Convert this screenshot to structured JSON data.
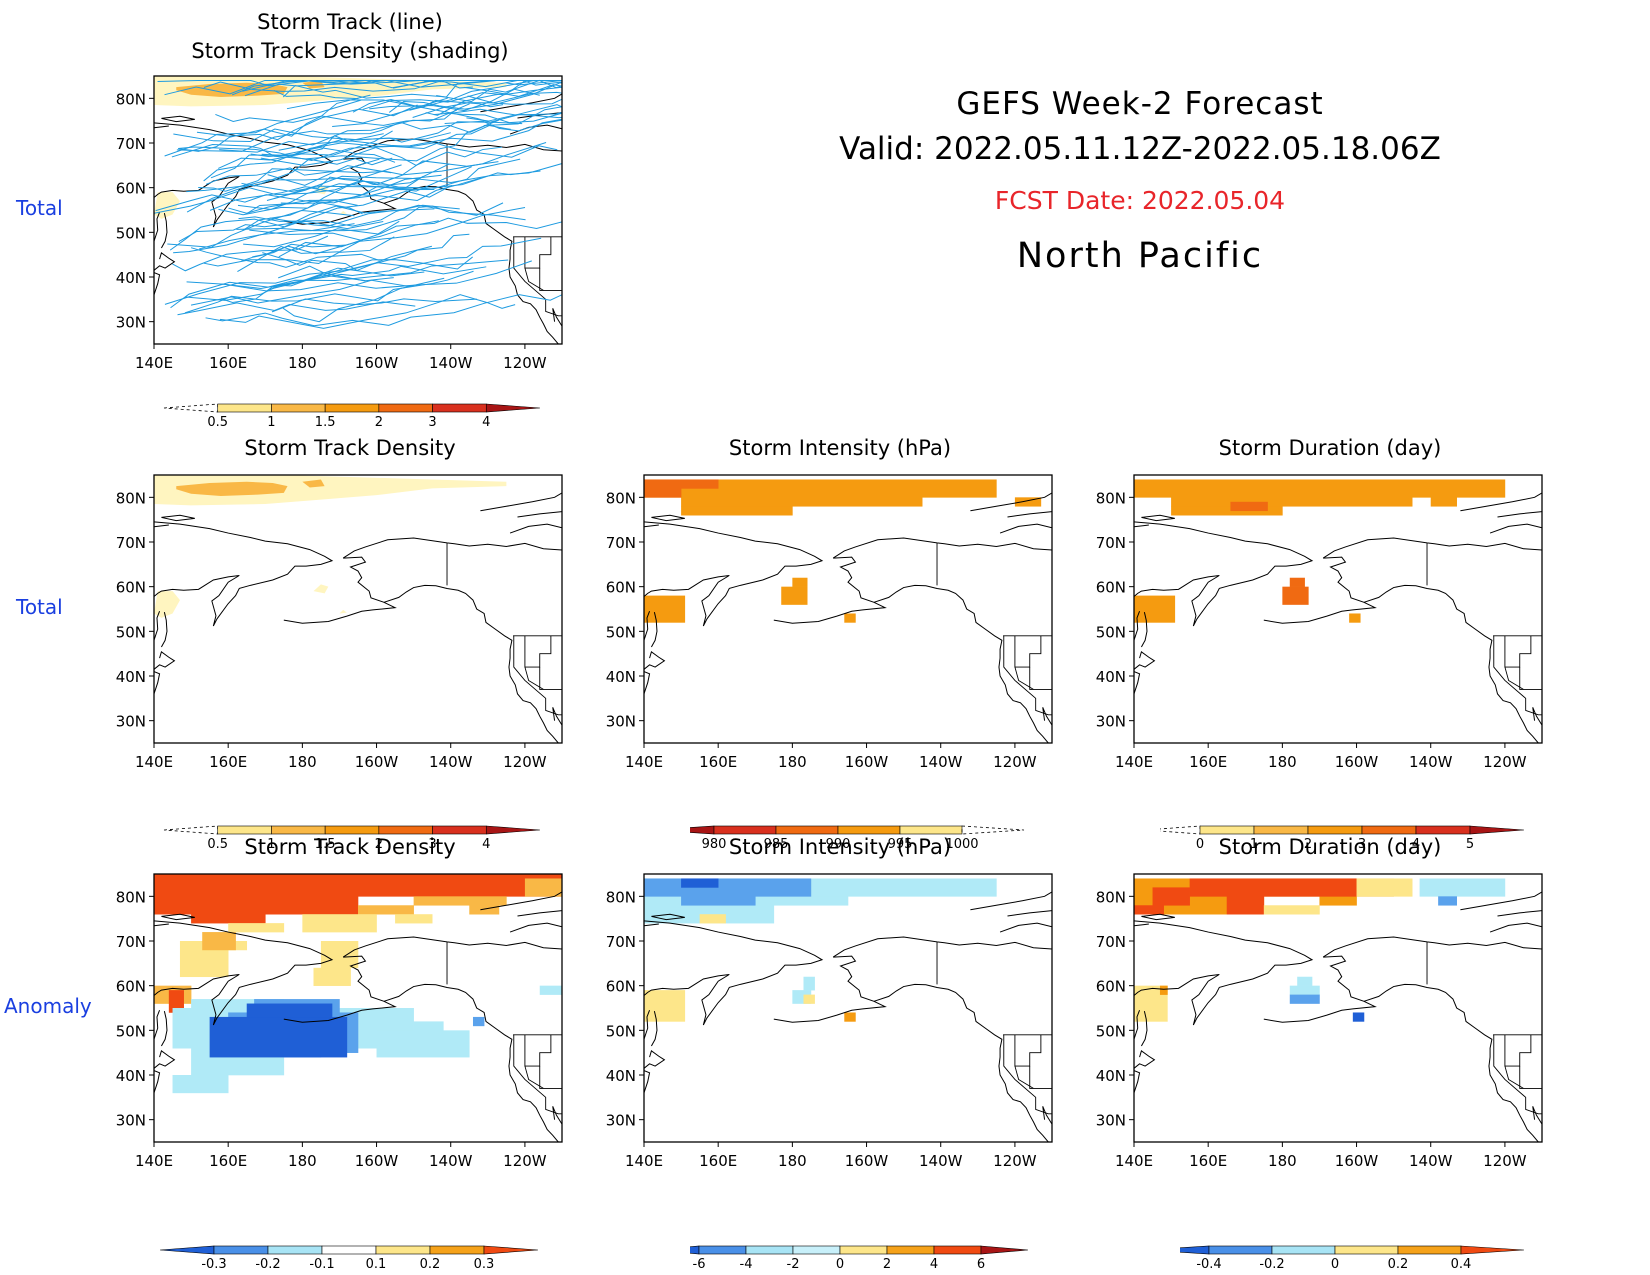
{
  "header": {
    "title": "GEFS Week-2 Forecast",
    "valid": "Valid: 2022.05.11.12Z-2022.05.18.06Z",
    "fcst_date": "FCST Date: 2022.05.04",
    "region": "North Pacific"
  },
  "row_labels": {
    "top": "Total",
    "middle": "Total",
    "bottom": "Anomaly"
  },
  "panels": {
    "track": {
      "title_line1": "Storm Track (line)",
      "title_line2": "Storm Track Density (shading)"
    },
    "total_density": {
      "title": "Storm Track Density"
    },
    "total_intensity": {
      "title": "Storm Intensity (hPa)"
    },
    "total_duration": {
      "title": "Storm Duration (day)"
    },
    "anom_density": {
      "title": "Storm Track Density"
    },
    "anom_intensity": {
      "title": "Storm Intensity (hPa)"
    },
    "anom_duration": {
      "title": "Storm Duration (day)"
    }
  },
  "axes": {
    "lat_labels": [
      "80N",
      "70N",
      "60N",
      "50N",
      "40N",
      "30N"
    ],
    "lon_labels": [
      "140E",
      "160E",
      "180",
      "160W",
      "140W",
      "120W"
    ]
  },
  "colorbars": {
    "density": {
      "labels": [
        "0.5",
        "1",
        "1.5",
        "2",
        "3",
        "4"
      ],
      "colors": [
        "#fff5c0",
        "#fde68a",
        "#f9b846",
        "#f59b10",
        "#f06a12",
        "#d9301e",
        "#a81515"
      ]
    },
    "intensity": {
      "labels": [
        "980",
        "985",
        "990",
        "995",
        "1000"
      ],
      "colors": [
        "#a81515",
        "#d9301e",
        "#f06a12",
        "#f59b10",
        "#fde68a"
      ]
    },
    "duration": {
      "labels": [
        "0",
        "1",
        "2",
        "3",
        "4",
        "5"
      ],
      "colors": [
        "#fff5c0",
        "#fde68a",
        "#f9b846",
        "#f59b10",
        "#f06a12",
        "#d9301e",
        "#a81515"
      ]
    },
    "anom_density": {
      "labels": [
        "-0.3",
        "-0.2",
        "-0.1",
        "0.1",
        "0.2",
        "0.3"
      ],
      "colors": [
        "#1f5fd6",
        "#4a90e8",
        "#a8e4f5",
        "#ffffff",
        "#fde68a",
        "#f5a21a",
        "#f04a12"
      ]
    },
    "anom_intensity": {
      "labels": [
        "-6",
        "-4",
        "-2",
        "0",
        "2",
        "4",
        "6"
      ],
      "colors": [
        "#1f5fd6",
        "#4a90e8",
        "#a8e4f5",
        "#c8f0fa",
        "#fde68a",
        "#f5a21a",
        "#f04a12",
        "#a81515"
      ]
    },
    "anom_duration": {
      "labels": [
        "-0.4",
        "-0.2",
        "0",
        "0.2",
        "0.4"
      ],
      "colors": [
        "#1f5fd6",
        "#4a90e8",
        "#a8e4f5",
        "#fde68a",
        "#f5a21a",
        "#f04a12"
      ]
    }
  },
  "colors": {
    "track_line": "#1e9be0",
    "row_label": "#1a3fe0",
    "fcst_date": "#e8252a"
  }
}
